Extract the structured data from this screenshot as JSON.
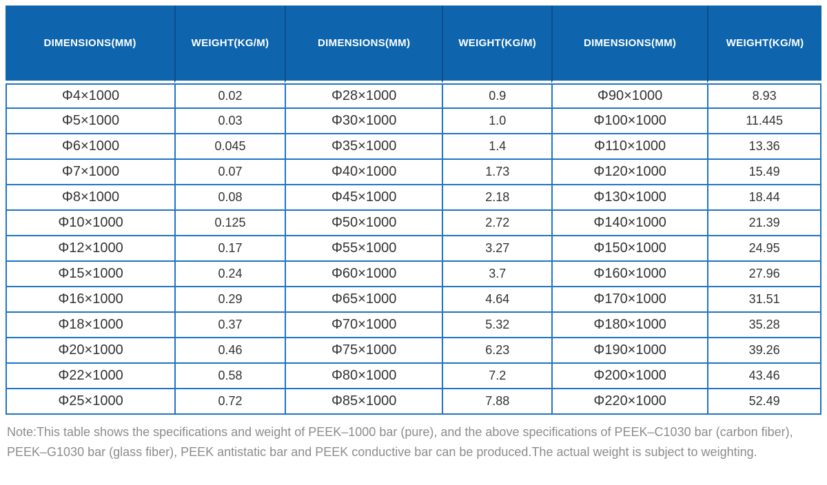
{
  "header": {
    "columns": [
      "DIMENSIONS(MM)",
      "WEIGHT(KG/M)",
      "DIMENSIONS(MM)",
      "WEIGHT(KG/M)",
      "DIMENSIONS(MM)",
      "WEIGHT(KG/M)"
    ]
  },
  "rows": [
    [
      "Φ4×1000",
      "0.02",
      "Φ28×1000",
      "0.9",
      "Φ90×1000",
      "8.93"
    ],
    [
      "Φ5×1000",
      "0.03",
      "Φ30×1000",
      "1.0",
      "Φ100×1000",
      "11.445"
    ],
    [
      "Φ6×1000",
      "0.045",
      "Φ35×1000",
      "1.4",
      "Φ110×1000",
      "13.36"
    ],
    [
      "Φ7×1000",
      "0.07",
      "Φ40×1000",
      "1.73",
      "Φ120×1000",
      "15.49"
    ],
    [
      "Φ8×1000",
      "0.08",
      "Φ45×1000",
      "2.18",
      "Φ130×1000",
      "18.44"
    ],
    [
      "Φ10×1000",
      "0.125",
      "Φ50×1000",
      "2.72",
      "Φ140×1000",
      "21.39"
    ],
    [
      "Φ12×1000",
      "0.17",
      "Φ55×1000",
      "3.27",
      "Φ150×1000",
      "24.95"
    ],
    [
      "Φ15×1000",
      "0.24",
      "Φ60×1000",
      "3.7",
      "Φ160×1000",
      "27.96"
    ],
    [
      "Φ16×1000",
      "0.29",
      "Φ65×1000",
      "4.64",
      "Φ170×1000",
      "31.51"
    ],
    [
      "Φ18×1000",
      "0.37",
      "Φ70×1000",
      "5.32",
      "Φ180×1000",
      "35.28"
    ],
    [
      "Φ20×1000",
      "0.46",
      "Φ75×1000",
      "6.23",
      "Φ190×1000",
      "39.26"
    ],
    [
      "Φ22×1000",
      "0.58",
      "Φ80×1000",
      "7.2",
      "Φ200×1000",
      "43.46"
    ],
    [
      "Φ25×1000",
      "0.72",
      "Φ85×1000",
      "7.88",
      "Φ220×1000",
      "52.49"
    ]
  ],
  "note": {
    "lines": [
      "Note:This table shows the specifications and weight of PEEK–1000 bar (pure), and the above specifications of PEEK–C1030 bar (carbon fiber),",
      "PEEK–G1030 bar (glass fiber), PEEK antistatic bar and PEEK conductive bar can be produced.The actual weight is subject to weighting."
    ]
  },
  "colors": {
    "header_bg": "#0e65ad",
    "header_divider": "#0a4e8e",
    "grid_border": "#1e73c6",
    "cell_text": "#333333",
    "note_text": "#8c8c8c"
  }
}
